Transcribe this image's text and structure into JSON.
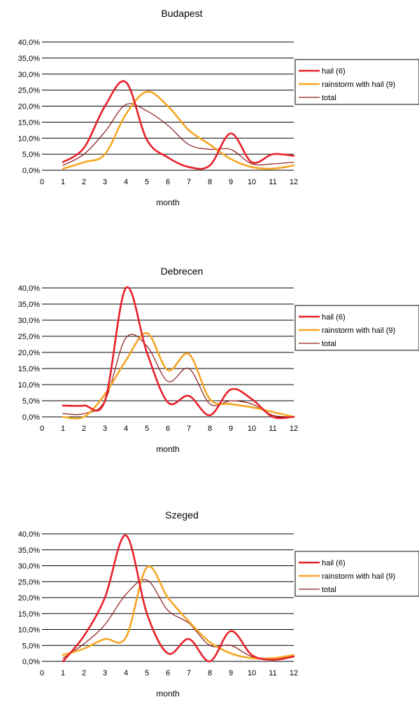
{
  "chart_data": [
    {
      "type": "line",
      "title": "Budapest",
      "xlabel": "month",
      "ylabel": "",
      "xlim": [
        0,
        12
      ],
      "ylim": [
        0,
        40
      ],
      "x_ticks": [
        "0",
        "1",
        "2",
        "3",
        "4",
        "5",
        "6",
        "7",
        "8",
        "9",
        "10",
        "11",
        "12"
      ],
      "y_ticks": [
        "0,0%",
        "5,0%",
        "10,0%",
        "15,0%",
        "20,0%",
        "25,0%",
        "30,0%",
        "35,0%",
        "40,0%"
      ],
      "grid": "horizontal",
      "legend_position": "right",
      "x": [
        1,
        2,
        3,
        4,
        5,
        6,
        7,
        8,
        9,
        10,
        11,
        12
      ],
      "series": [
        {
          "name": "hail (6)",
          "color": "#e8202a",
          "values": [
            2.5,
            7.0,
            20.0,
            27.5,
            9.5,
            4.0,
            1.0,
            1.5,
            11.5,
            2.5,
            5.0,
            4.5
          ]
        },
        {
          "name": "rainstorm with hail (9)",
          "color": "#f5a623",
          "values": [
            0.5,
            2.5,
            5.0,
            17.5,
            24.5,
            20.0,
            12.5,
            8.0,
            3.5,
            1.0,
            0.5,
            1.5
          ]
        },
        {
          "name": "total",
          "color": "#8b1a1a",
          "values": [
            1.5,
            5.0,
            12.0,
            20.5,
            18.5,
            14.0,
            8.0,
            6.5,
            6.5,
            2.0,
            2.0,
            2.5
          ]
        }
      ]
    },
    {
      "type": "line",
      "title": "Debrecen",
      "xlabel": "month",
      "ylabel": "",
      "xlim": [
        0,
        12
      ],
      "ylim": [
        0,
        40
      ],
      "x_ticks": [
        "0",
        "1",
        "2",
        "3",
        "4",
        "5",
        "6",
        "7",
        "8",
        "9",
        "10",
        "11",
        "12"
      ],
      "y_ticks": [
        "0,0%",
        "5,0%",
        "10,0%",
        "15,0%",
        "20,0%",
        "25,0%",
        "30,0%",
        "35,0%",
        "40,0%"
      ],
      "grid": "horizontal",
      "legend_position": "right",
      "x": [
        1,
        2,
        3,
        4,
        5,
        6,
        7,
        8,
        9,
        10,
        11,
        12
      ],
      "series": [
        {
          "name": "hail (6)",
          "color": "#e8202a",
          "values": [
            3.5,
            3.5,
            5.0,
            40.0,
            20.0,
            4.5,
            6.5,
            0.5,
            8.5,
            5.5,
            0.0,
            0.0
          ]
        },
        {
          "name": "rainstorm with hail (9)",
          "color": "#f5a623",
          "values": [
            0.0,
            0.0,
            7.0,
            17.5,
            26.0,
            14.5,
            19.5,
            5.5,
            4.0,
            3.0,
            1.5,
            0.0
          ]
        },
        {
          "name": "total",
          "color": "#8b1a1a",
          "values": [
            1.0,
            1.0,
            5.0,
            24.5,
            22.0,
            11.0,
            15.0,
            4.0,
            5.0,
            4.0,
            0.5,
            0.0
          ]
        }
      ]
    },
    {
      "type": "line",
      "title": "Szeged",
      "xlabel": "month",
      "ylabel": "",
      "xlim": [
        0,
        12
      ],
      "ylim": [
        0,
        40
      ],
      "x_ticks": [
        "0",
        "1",
        "2",
        "3",
        "4",
        "5",
        "6",
        "7",
        "8",
        "9",
        "10",
        "11",
        "12"
      ],
      "y_ticks": [
        "0,0%",
        "5,0%",
        "10,0%",
        "15,0%",
        "20,0%",
        "25,0%",
        "30,0%",
        "35,0%",
        "40,0%"
      ],
      "grid": "horizontal",
      "legend_position": "right",
      "x": [
        1,
        2,
        3,
        4,
        5,
        6,
        7,
        8,
        9,
        10,
        11,
        12
      ],
      "series": [
        {
          "name": "hail (6)",
          "color": "#e8202a",
          "values": [
            0.0,
            8.0,
            20.0,
            39.5,
            15.0,
            2.5,
            7.0,
            0.0,
            9.5,
            2.0,
            0.5,
            1.5
          ]
        },
        {
          "name": "rainstorm with hail (9)",
          "color": "#f5a623",
          "values": [
            2.0,
            4.0,
            7.0,
            7.5,
            29.5,
            20.0,
            12.5,
            6.0,
            2.5,
            1.0,
            1.0,
            2.0
          ]
        },
        {
          "name": "total",
          "color": "#8b1a1a",
          "values": [
            1.0,
            5.5,
            11.5,
            21.0,
            25.5,
            16.0,
            12.0,
            5.0,
            5.0,
            1.5,
            1.0,
            1.5
          ]
        }
      ]
    }
  ]
}
